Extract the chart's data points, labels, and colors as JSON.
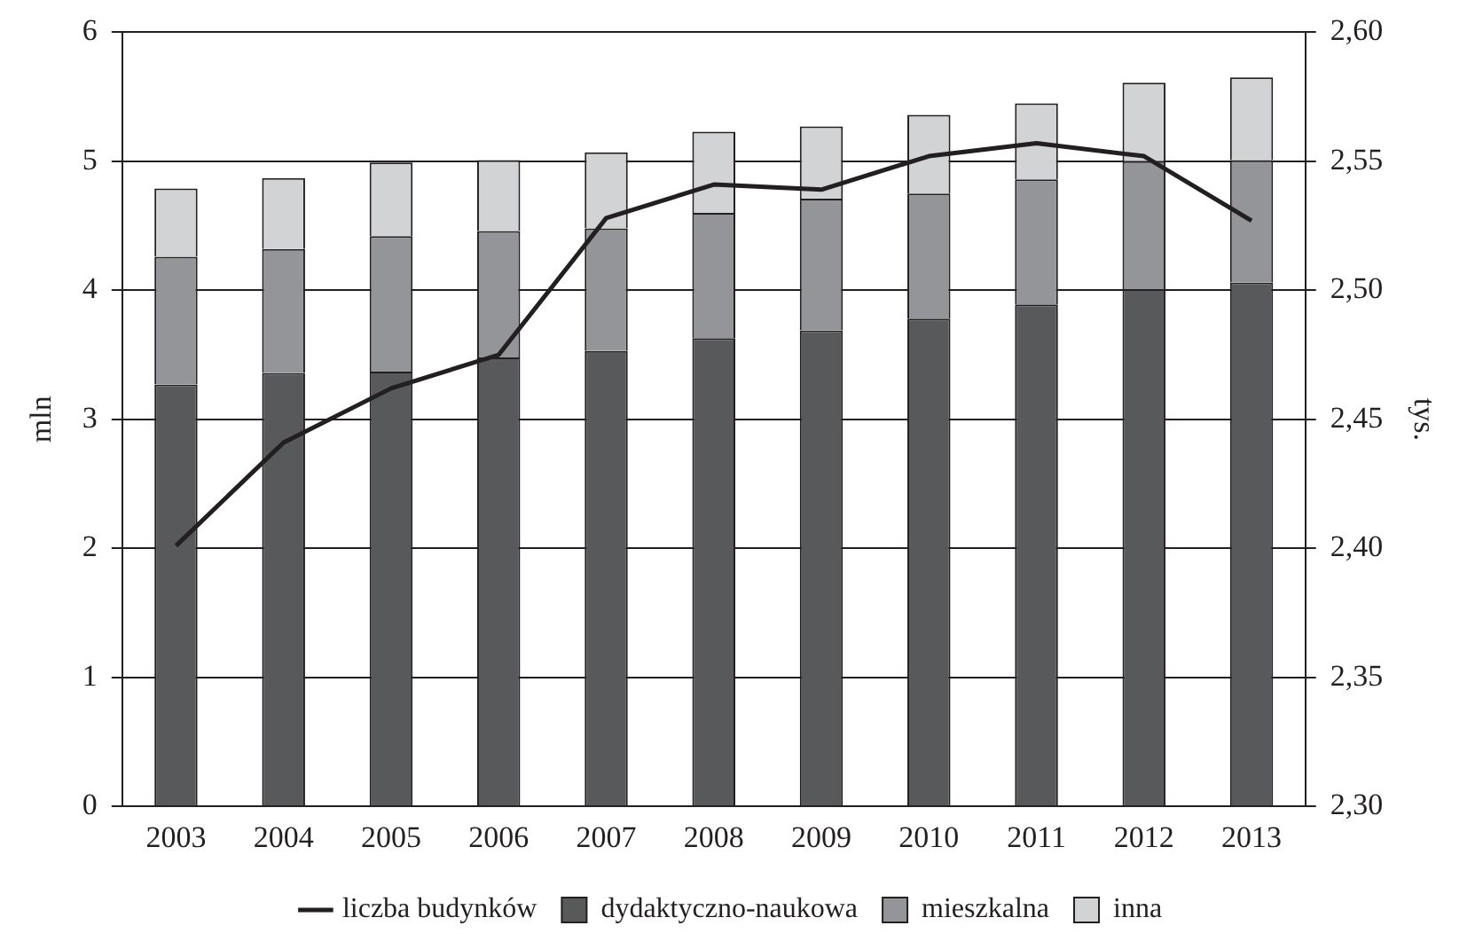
{
  "chart_data": {
    "type": "bar",
    "stacked": true,
    "categories": [
      "2003",
      "2004",
      "2005",
      "2006",
      "2007",
      "2008",
      "2009",
      "2010",
      "2011",
      "2012",
      "2013"
    ],
    "series": [
      {
        "name": "dydaktyczno-naukowa",
        "color": "#58595b",
        "values": [
          3.27,
          3.36,
          3.37,
          3.48,
          3.53,
          3.63,
          3.69,
          3.78,
          3.89,
          4.01,
          4.06
        ]
      },
      {
        "name": "mieszkalna",
        "color": "#939598",
        "values": [
          0.99,
          0.96,
          1.05,
          0.98,
          0.95,
          0.97,
          1.02,
          0.97,
          0.97,
          0.99,
          0.95
        ]
      },
      {
        "name": "inna",
        "color": "#d1d3d4",
        "values": [
          0.53,
          0.55,
          0.57,
          0.55,
          0.59,
          0.63,
          0.56,
          0.61,
          0.59,
          0.61,
          0.64
        ]
      },
      {
        "name": "liczba budynków",
        "type": "line",
        "axis": "y2",
        "color": "#231f20",
        "values": [
          2.401,
          2.441,
          2.462,
          2.475,
          2.528,
          2.541,
          2.539,
          2.552,
          2.557,
          2.552,
          2.527
        ]
      }
    ],
    "ylabel": "mln",
    "y2label": "tys.",
    "ylim": [
      0,
      6
    ],
    "yticks": [
      0,
      1,
      2,
      3,
      4,
      5,
      6
    ],
    "y2lim": [
      2.3,
      2.6
    ],
    "y2ticks": [
      {
        "value": 2.3,
        "label": "2,30"
      },
      {
        "value": 2.35,
        "label": "2,35"
      },
      {
        "value": 2.4,
        "label": "2,40"
      },
      {
        "value": 2.45,
        "label": "2,45"
      },
      {
        "value": 2.5,
        "label": "2,50"
      },
      {
        "value": 2.55,
        "label": "2,55"
      },
      {
        "value": 2.6,
        "label": "2,60"
      }
    ],
    "grid": "y",
    "legend": "bottom",
    "marker": "none",
    "line_style": "solid"
  }
}
